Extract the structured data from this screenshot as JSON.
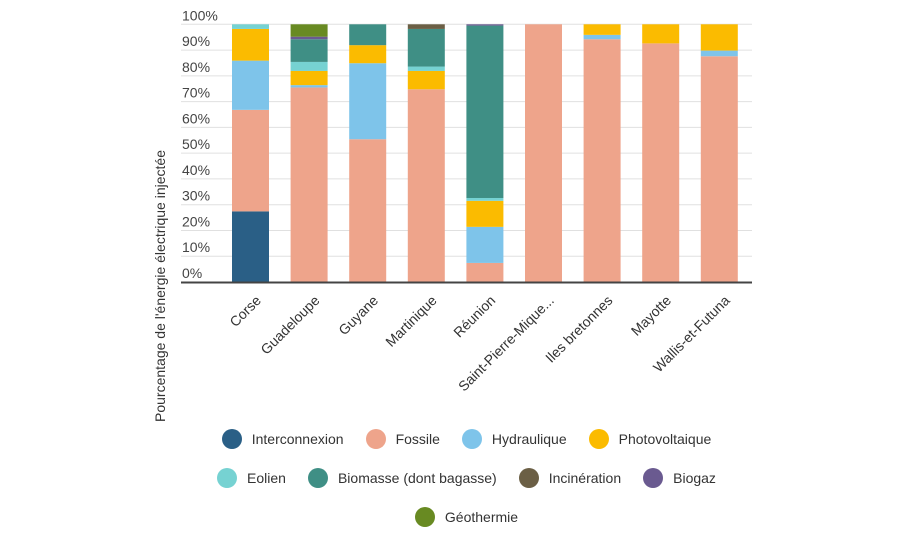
{
  "chart_data": {
    "type": "bar",
    "stacked": true,
    "ylabel": "Pourcentage de l'énergie électrique injectée",
    "xlabel": "",
    "ylim": [
      0,
      100
    ],
    "yticks": [
      "0%",
      "10%",
      "20%",
      "30%",
      "40%",
      "50%",
      "60%",
      "70%",
      "80%",
      "90%",
      "100%"
    ],
    "grid": true,
    "legend_placement": "bottom",
    "categories": [
      "Corse",
      "Guadeloupe",
      "Guyane",
      "Martinique",
      "Réunion",
      "Saint-Pierre-Mique...",
      "Iles bretonnes",
      "Mayotte",
      "Wallis-et-Futuna"
    ],
    "series": [
      {
        "name": "Interconnexion",
        "color": "#2a5f86",
        "values": [
          27.4,
          0,
          0,
          0,
          0,
          0,
          0,
          0,
          0
        ]
      },
      {
        "name": "Fossile",
        "color": "#eea48b",
        "values": [
          39.4,
          75.5,
          55.4,
          74.8,
          7.4,
          100,
          94.2,
          92.6,
          87.6
        ]
      },
      {
        "name": "Hydraulique",
        "color": "#7ec4ea",
        "values": [
          19.1,
          0.9,
          29.5,
          0,
          14.0,
          0,
          1.7,
          0,
          2.2
        ]
      },
      {
        "name": "Photovoltaique",
        "color": "#fbbb00",
        "values": [
          12.3,
          5.5,
          7.0,
          7.1,
          10.1,
          0,
          4.1,
          7.4,
          10.2
        ]
      },
      {
        "name": "Eolien",
        "color": "#76d2d2",
        "values": [
          1.8,
          3.5,
          0,
          1.7,
          1.1,
          0,
          0,
          0,
          0
        ]
      },
      {
        "name": "Biomasse (dont bagasse)",
        "color": "#3f8f85",
        "values": [
          0,
          8.8,
          8.1,
          14.6,
          66.9,
          0,
          0,
          0,
          0
        ]
      },
      {
        "name": "Incinération",
        "color": "#6b5f45",
        "values": [
          0,
          0,
          0,
          1.8,
          0,
          0,
          0,
          0,
          0
        ]
      },
      {
        "name": "Biogaz",
        "color": "#6a5a90",
        "values": [
          0,
          1.0,
          0,
          0,
          0.5,
          0,
          0,
          0,
          0
        ]
      },
      {
        "name": "Géothermie",
        "color": "#688a22",
        "values": [
          0,
          4.8,
          0,
          0,
          0,
          0,
          0,
          0,
          0
        ]
      }
    ]
  }
}
